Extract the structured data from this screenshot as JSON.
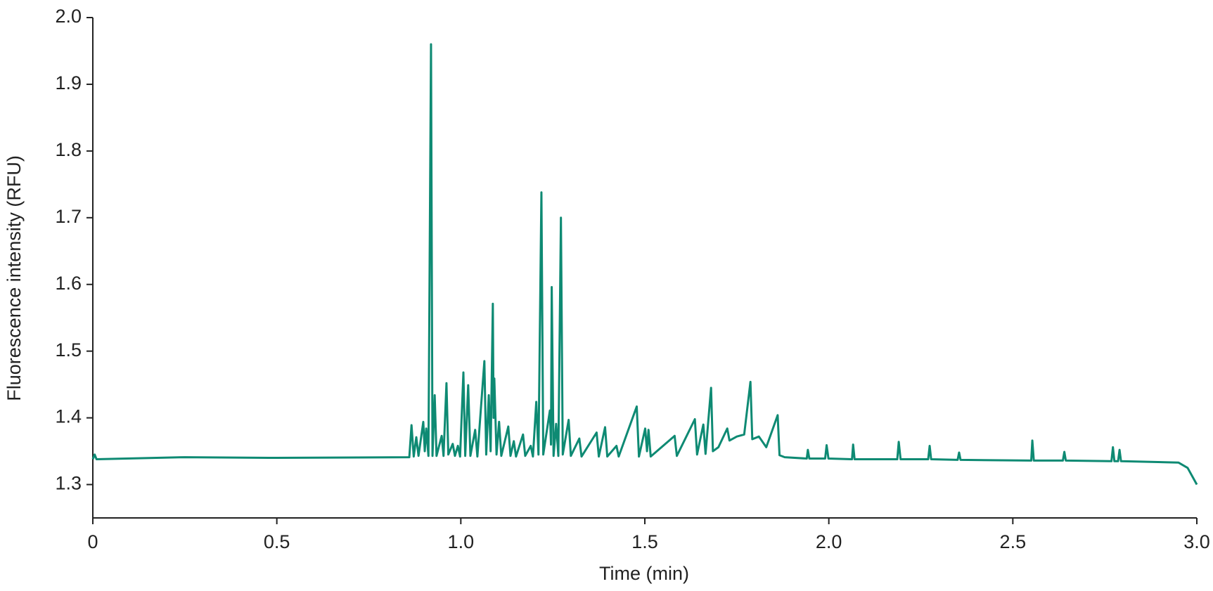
{
  "chart_data": {
    "type": "line",
    "xlabel": "Time (min)",
    "ylabel": "Fluorescence intensity (RFU)",
    "color": "#0e8a73",
    "xlim": [
      0,
      3
    ],
    "ylim": [
      1.25,
      2.0
    ],
    "xticks": [
      0,
      0.5,
      {
        "value": 1,
        "label": "1.0"
      },
      1.5,
      {
        "value": 2,
        "label": "2.0"
      },
      2.5,
      {
        "value": 3,
        "label": "3.0"
      }
    ],
    "yticks": [
      1.3,
      1.4,
      1.5,
      1.6,
      1.7,
      1.8,
      1.9,
      {
        "value": 2,
        "label": "2.0"
      }
    ],
    "x": [
      0,
      0.005,
      0.01,
      0.25,
      0.5,
      0.86,
      0.866,
      0.872,
      0.879,
      0.885,
      0.898,
      0.902,
      0.906,
      0.912,
      0.919,
      0.923,
      0.929,
      0.934,
      0.948,
      0.953,
      0.961,
      0.966,
      0.978,
      0.984,
      0.992,
      0.998,
      1.007,
      1.012,
      1.02,
      1.026,
      1.039,
      1.045,
      1.064,
      1.069,
      1.076,
      1.081,
      1.087,
      1.089,
      1.091,
      1.097,
      1.104,
      1.11,
      1.129,
      1.135,
      1.144,
      1.15,
      1.169,
      1.175,
      1.19,
      1.196,
      1.205,
      1.211,
      1.219,
      1.224,
      1.242,
      1.245,
      1.247,
      1.252,
      1.259,
      1.265,
      1.272,
      1.277,
      1.293,
      1.299,
      1.322,
      1.328,
      1.369,
      1.375,
      1.392,
      1.398,
      1.423,
      1.429,
      1.478,
      1.484,
      1.501,
      1.506,
      1.51,
      1.516,
      1.581,
      1.587,
      1.636,
      1.642,
      1.659,
      1.665,
      1.68,
      1.685,
      1.7,
      1.724,
      1.73,
      1.75,
      1.77,
      1.787,
      1.792,
      1.81,
      1.83,
      1.861,
      1.866,
      1.88,
      1.94,
      1.943,
      1.947,
      1.99,
      1.994,
      1.999,
      2.063,
      2.066,
      2.07,
      2.186,
      2.19,
      2.195,
      2.27,
      2.274,
      2.278,
      2.35,
      2.354,
      2.358,
      2.55,
      2.553,
      2.557,
      2.636,
      2.64,
      2.644,
      2.768,
      2.772,
      2.776,
      2.786,
      2.79,
      2.794,
      2.95,
      2.975,
      3.0
    ],
    "values": [
      1.338,
      1.345,
      1.338,
      1.341,
      1.34,
      1.341,
      1.389,
      1.342,
      1.371,
      1.343,
      1.394,
      1.35,
      1.384,
      1.343,
      1.96,
      1.343,
      1.434,
      1.343,
      1.373,
      1.343,
      1.452,
      1.345,
      1.361,
      1.343,
      1.358,
      1.342,
      1.468,
      1.343,
      1.449,
      1.343,
      1.382,
      1.342,
      1.485,
      1.345,
      1.434,
      1.35,
      1.571,
      1.4,
      1.459,
      1.345,
      1.394,
      1.343,
      1.387,
      1.343,
      1.365,
      1.342,
      1.375,
      1.343,
      1.358,
      1.342,
      1.424,
      1.345,
      1.738,
      1.345,
      1.411,
      1.36,
      1.596,
      1.343,
      1.391,
      1.343,
      1.7,
      1.345,
      1.397,
      1.343,
      1.369,
      1.342,
      1.378,
      1.342,
      1.386,
      1.342,
      1.358,
      1.342,
      1.417,
      1.342,
      1.384,
      1.35,
      1.382,
      1.342,
      1.373,
      1.343,
      1.398,
      1.345,
      1.39,
      1.346,
      1.445,
      1.35,
      1.356,
      1.384,
      1.366,
      1.372,
      1.375,
      1.454,
      1.368,
      1.372,
      1.356,
      1.404,
      1.344,
      1.341,
      1.339,
      1.352,
      1.339,
      1.339,
      1.359,
      1.339,
      1.338,
      1.36,
      1.338,
      1.338,
      1.364,
      1.338,
      1.338,
      1.358,
      1.338,
      1.337,
      1.348,
      1.337,
      1.336,
      1.366,
      1.336,
      1.336,
      1.349,
      1.336,
      1.335,
      1.356,
      1.335,
      1.335,
      1.352,
      1.335,
      1.333,
      1.325,
      1.3
    ]
  }
}
